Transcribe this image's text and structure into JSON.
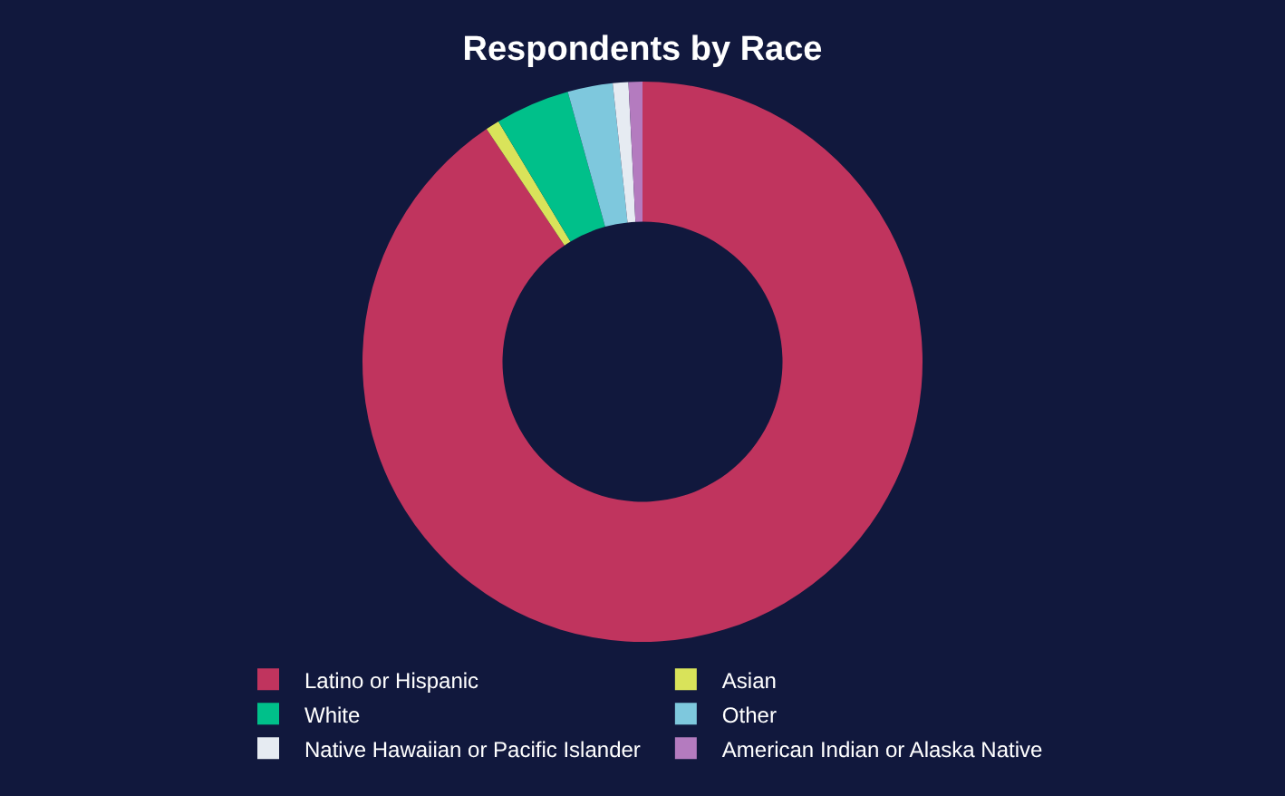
{
  "chart_data": {
    "type": "donut",
    "title": "Respondents by Race",
    "categories": [
      "Latino or Hispanic",
      "Asian",
      "White",
      "Other",
      "Native Hawaiian or Pacific Islander",
      "American Indian or Alaska Native"
    ],
    "values": [
      90.6,
      0.8,
      4.3,
      2.6,
      0.9,
      0.8
    ],
    "colors": [
      "#c0345e",
      "#d9e35a",
      "#00c08a",
      "#7ec8dd",
      "#e6ebf2",
      "#b47bbf"
    ],
    "legend": "bottom"
  }
}
